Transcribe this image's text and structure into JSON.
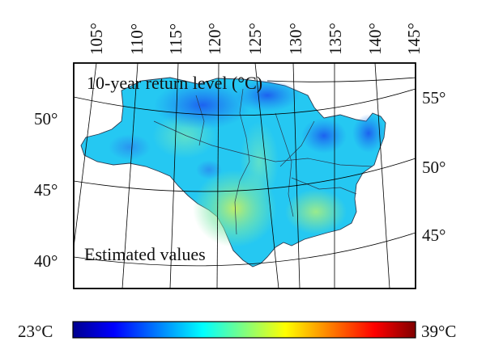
{
  "map": {
    "title": "10-year return level (°C)",
    "subtitle": "Estimated values",
    "top_ticks": [
      "105°",
      "110°",
      "115°",
      "120°",
      "125°",
      "130°",
      "135°",
      "140°",
      "145°"
    ],
    "left_ticks": [
      "50°",
      "45°",
      "40°"
    ],
    "right_ticks": [
      "55°",
      "50°",
      "45°"
    ]
  },
  "colorbar": {
    "min_label": "23°C",
    "max_label": "39°C",
    "min_value": 23,
    "max_value": 39,
    "colormap": "jet",
    "stops": [
      "#00008f",
      "#0000ff",
      "#00ffff",
      "#ffff00",
      "#ff0000",
      "#800000"
    ]
  },
  "colors": {
    "region_base": "#25c8f2",
    "frame": "#000000",
    "graticule": "#000000"
  }
}
